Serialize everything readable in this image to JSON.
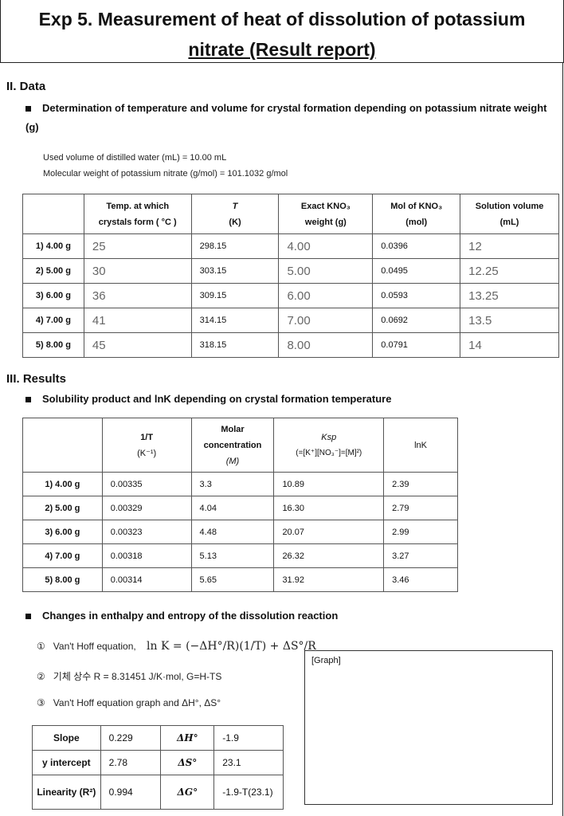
{
  "title": {
    "line1": "Exp 5. Measurement of heat of dissolution of potassium",
    "line2": "nitrate (Result report)"
  },
  "data_section": {
    "heading": "II. Data",
    "bullet": "Determination of temperature and volume for crystal formation depending on potassium nitrate weight (g)",
    "water_volume": "Used volume of distilled water (mL) = 10.00 mL",
    "molecular_weight": "Molecular weight of potassium nitrate (g/mol) = 101.1032 g/mol",
    "headers": [
      [
        "Temp. at which",
        "crystals form ( °C )"
      ],
      [
        "T",
        "(K)"
      ],
      [
        "Exact KNO₃",
        "weight (g)"
      ],
      [
        "Mol of KNO₃",
        "(mol)"
      ],
      [
        "Solution volume",
        "(mL)"
      ]
    ],
    "rows": [
      {
        "label": "1) 4.00 g",
        "temp": "25",
        "T": "298.15",
        "weight": "4.00",
        "mol": "0.0396",
        "volume": "12"
      },
      {
        "label": "2) 5.00 g",
        "temp": "30",
        "T": "303.15",
        "weight": "5.00",
        "mol": "0.0495",
        "volume": "12.25"
      },
      {
        "label": "3) 6.00 g",
        "temp": "36",
        "T": "309.15",
        "weight": "6.00",
        "mol": "0.0593",
        "volume": "13.25"
      },
      {
        "label": "4) 7.00 g",
        "temp": "41",
        "T": "314.15",
        "weight": "7.00",
        "mol": "0.0692",
        "volume": "13.5"
      },
      {
        "label": "5) 8.00 g",
        "temp": "45",
        "T": "318.15",
        "weight": "8.00",
        "mol": "0.0791",
        "volume": "14"
      }
    ]
  },
  "results_section": {
    "heading": "III. Results",
    "bullet": "Solubility product and lnK depending on crystal formation temperature",
    "headers": [
      [
        "1/T",
        "(K⁻¹)"
      ],
      [
        "Molar",
        "concentration",
        "(M)"
      ],
      [
        "Ksp",
        "(=[K⁺][NO₃⁻]=[M]²)"
      ],
      [
        "lnK"
      ]
    ],
    "rows": [
      {
        "label": "1) 4.00 g",
        "inv_T": "0.00335",
        "conc": "3.3",
        "ksp": "10.89",
        "lnk": "2.39"
      },
      {
        "label": "2) 5.00 g",
        "inv_T": "0.00329",
        "conc": "4.04",
        "ksp": "16.30",
        "lnk": "2.79"
      },
      {
        "label": "3) 6.00 g",
        "inv_T": "0.00323",
        "conc": "4.48",
        "ksp": "20.07",
        "lnk": "2.99"
      },
      {
        "label": "4) 7.00 g",
        "inv_T": "0.00318",
        "conc": "5.13",
        "ksp": "26.32",
        "lnk": "3.27"
      },
      {
        "label": "5) 8.00 g",
        "inv_T": "0.00314",
        "conc": "5.65",
        "ksp": "31.92",
        "lnk": "3.46"
      }
    ],
    "bullet2": "Changes in enthalpy and entropy of the dissolution reaction",
    "items": [
      {
        "num": "①",
        "text": "Van't Hoff equation,",
        "formula": "ln K = (−ΔH°/R)(1/T) + ΔS°/R"
      },
      {
        "num": "②",
        "text": "기체 상수 R = 8.31451 J/K·mol, G=H-TS"
      },
      {
        "num": "③",
        "text": "Van't Hoff equation graph and ΔH°, ΔS°"
      }
    ],
    "summary": [
      {
        "label": "Slope",
        "value": "0.229",
        "sym": "ΔH°",
        "symval": "-1.9"
      },
      {
        "label": "y intercept",
        "value": "2.78",
        "sym": "ΔS°",
        "symval": "23.1"
      },
      {
        "label": "Linearity (R²)",
        "value": "0.994",
        "sym": "ΔG°",
        "symval": "-1.9-T(23.1)"
      }
    ],
    "graph_label": "[Graph]"
  }
}
